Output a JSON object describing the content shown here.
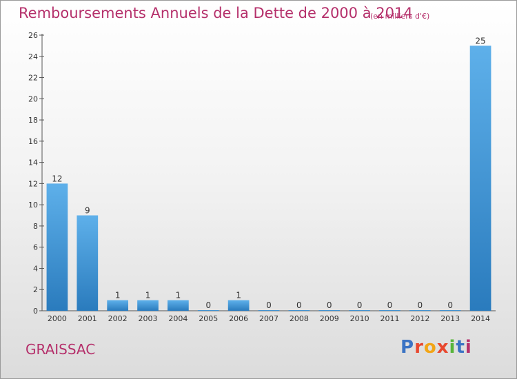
{
  "title": "Remboursements Annuels de la Dette de 2000 à 2014",
  "subtitle": "(en milliers d'€)",
  "commune": "GRAISSAC",
  "brand": {
    "letters": [
      {
        "ch": "P",
        "color": "#3b73c4"
      },
      {
        "ch": "r",
        "color": "#e8482f"
      },
      {
        "ch": "o",
        "color": "#f2a516"
      },
      {
        "ch": "x",
        "color": "#e8482f"
      },
      {
        "ch": "i",
        "color": "#57b43a"
      },
      {
        "ch": "t",
        "color": "#3b73c4"
      },
      {
        "ch": "i",
        "color": "#b5306b"
      }
    ]
  },
  "chart_data": {
    "type": "bar",
    "categories": [
      "2000",
      "2001",
      "2002",
      "2003",
      "2004",
      "2005",
      "2006",
      "2007",
      "2008",
      "2009",
      "2010",
      "2011",
      "2012",
      "2013",
      "2014"
    ],
    "values": [
      12,
      9,
      1,
      1,
      1,
      0,
      1,
      0,
      0,
      0,
      0,
      0,
      0,
      0,
      25
    ],
    "data_labels": [
      "12",
      "9",
      "1",
      "1",
      "1",
      "0",
      "1",
      "0",
      "0",
      "0",
      "0",
      "0",
      "0",
      "0",
      "25"
    ],
    "ylim": [
      0,
      26
    ],
    "yticks": [
      0,
      2,
      4,
      6,
      8,
      10,
      12,
      14,
      16,
      18,
      20,
      22,
      24,
      26
    ],
    "xlabel": "",
    "ylabel": "",
    "grid": false,
    "legend": "none",
    "colors": {
      "bar_light": "#5eb0ea",
      "bar_dark": "#2a7bbd",
      "axis": "#555555",
      "text": "#333333"
    }
  }
}
